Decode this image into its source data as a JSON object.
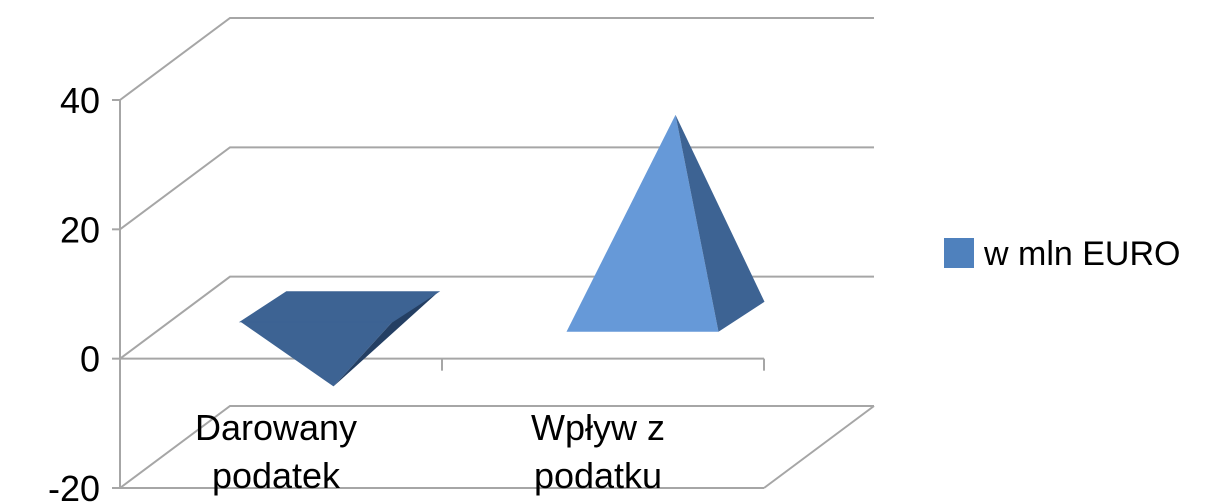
{
  "chart_data": {
    "type": "bar",
    "subtype": "3d-pyramid",
    "title": "",
    "xlabel": "",
    "ylabel": "",
    "categories": [
      "Darowany\npodatek",
      "Wpływ z\npodatku"
    ],
    "series": [
      {
        "name": "w mln EURO",
        "values": [
          -10,
          32
        ]
      }
    ],
    "ylim": [
      -20,
      40
    ],
    "yticks": [
      "-20",
      "0",
      "20",
      "40"
    ],
    "grid": true,
    "legend": "right",
    "colors": {
      "series": "#4f81bd",
      "neg_front": "#3d6393",
      "neg_side": "#243f63",
      "pos_front": "#6699d8",
      "pos_side": "#3d6393",
      "grid": "#a6a6a6"
    }
  }
}
